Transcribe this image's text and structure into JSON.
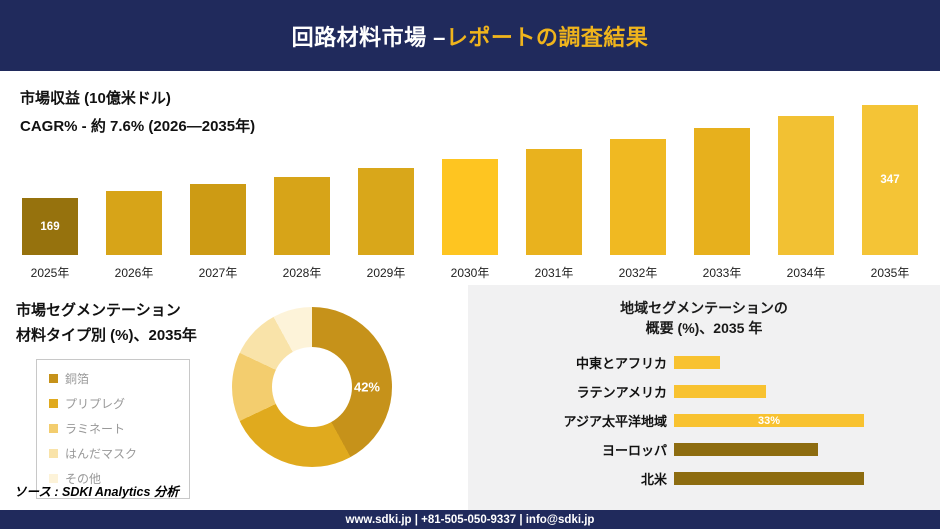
{
  "header": {
    "title_part1": "回路材料市場 –",
    "title_part2": "レポートの調査結果"
  },
  "revenue_section": {
    "metric_label": "市場収益 (10億米ドル)",
    "cagr_label": "CAGR% - 約 7.6% (2026―2035年)"
  },
  "material_section": {
    "title_line1": "市場セグメンテーション",
    "title_line2": "材料タイプ別 (%)、2035年",
    "source_note": "ソース : SDKI Analytics 分析"
  },
  "region_section": {
    "title_line1": "地域セグメンテーションの",
    "title_line2": "概要 (%)、2035 年"
  },
  "footer": {
    "contact_line": "www.sdki.jp | +81-505-050-9337 | info@sdki.jp"
  },
  "colors": {
    "navy": "#202a5c",
    "accent_gold": "#f0b41c",
    "panel_gray": "#f1f1f2"
  },
  "chart_data": [
    {
      "id": "revenue",
      "type": "bar",
      "title": "市場収益 (10億米ドル)",
      "subtitle": "CAGR% - 約 7.6% (2026―2035年)",
      "categories": [
        "2025年",
        "2026年",
        "2027年",
        "2028年",
        "2029年",
        "2030年",
        "2031年",
        "2032年",
        "2033年",
        "2034年",
        "2035年"
      ],
      "values": [
        169,
        182,
        196,
        210,
        226,
        243,
        262,
        281,
        303,
        325,
        347
      ],
      "unit": "10億米ドル",
      "ylim": [
        0,
        360
      ],
      "grid": false,
      "legend": "none",
      "shown_value_labels": {
        "2025年": "169",
        "2035年": "347"
      },
      "bar_colors": [
        "#96720d",
        "#d7a418",
        "#cd9b14",
        "#d7a418",
        "#d9a71a",
        "#fec521",
        "#e9b21e",
        "#f0b922",
        "#e7b01d",
        "#f2c133",
        "#f4c436"
      ]
    },
    {
      "id": "material-donut",
      "type": "pie",
      "donut": true,
      "title": "市場セグメンテーション 材料タイプ別 (%)、2035年",
      "labels": [
        "銅箔",
        "プリプレグ",
        "ラミネート",
        "はんだマスク",
        "その他"
      ],
      "values": [
        42,
        26,
        14,
        10,
        8
      ],
      "colors": [
        "#c6921a",
        "#e0aa1e",
        "#f3cd6e",
        "#f9e3a9",
        "#fdf3d9"
      ],
      "shown_label": "42%",
      "legend_position": "left"
    },
    {
      "id": "region-bars",
      "type": "bar",
      "orientation": "horizontal",
      "title": "地域セグメンテーションの概要 (%)、2035 年",
      "categories": [
        "中東とアフリカ",
        "ラテンアメリカ",
        "アジア太平洋地域",
        "ヨーロッパ",
        "北米"
      ],
      "values": [
        8,
        16,
        33,
        25,
        33
      ],
      "colors": [
        "#f8c230",
        "#f8c230",
        "#f8c230",
        "#8d6c10",
        "#8d6c10"
      ],
      "shown_label": {
        "category": "アジア太平洋地域",
        "text": "33%"
      },
      "grid": false,
      "legend": "none"
    }
  ]
}
